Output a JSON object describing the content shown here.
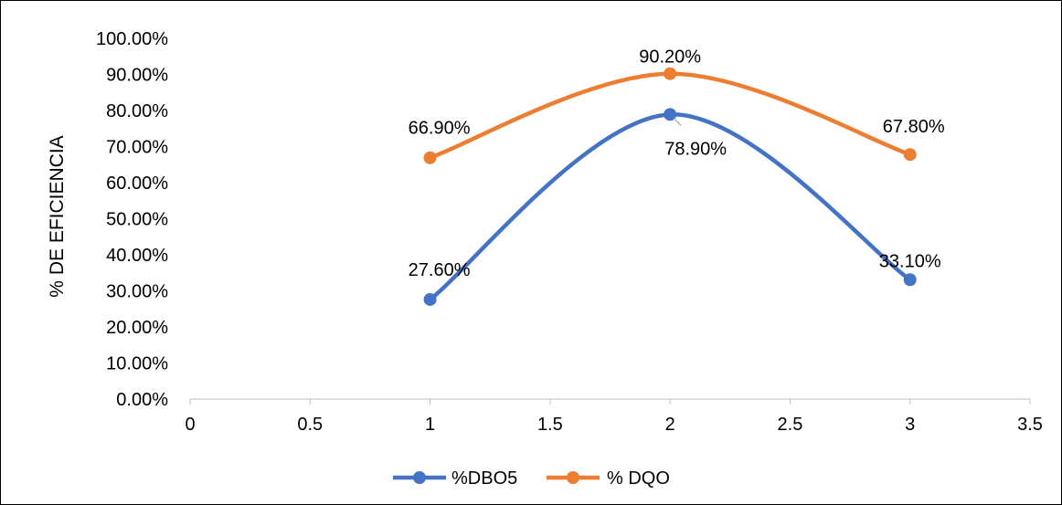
{
  "chart_data": {
    "type": "line",
    "title": "",
    "xlabel": "",
    "ylabel": "% DE EFICIENCIA",
    "xlim": [
      0,
      3.5
    ],
    "ylim": [
      0,
      1
    ],
    "x_ticks": [
      0,
      0.5,
      1,
      1.5,
      2,
      2.5,
      3,
      3.5
    ],
    "x_tick_labels": [
      "0",
      "0.5",
      "1",
      "1.5",
      "2",
      "2.5",
      "3",
      "3.5"
    ],
    "y_ticks": [
      0,
      0.1,
      0.2,
      0.3,
      0.4,
      0.5,
      0.6,
      0.7,
      0.8,
      0.9,
      1.0
    ],
    "y_tick_labels": [
      "0.00%",
      "10.00%",
      "20.00%",
      "30.00%",
      "40.00%",
      "50.00%",
      "60.00%",
      "70.00%",
      "80.00%",
      "90.00%",
      "100.00%"
    ],
    "grid": false,
    "smooth": true,
    "legend_position": "bottom",
    "series": [
      {
        "name": "%DBO5",
        "color": "#4472C4",
        "x": [
          1,
          2,
          3
        ],
        "y": [
          0.276,
          0.789,
          0.331
        ],
        "labels": [
          "27.60%",
          "78.90%",
          "33.10%"
        ]
      },
      {
        "name": "% DQO",
        "color": "#ED7D31",
        "x": [
          1,
          2,
          3
        ],
        "y": [
          0.669,
          0.902,
          0.678
        ],
        "labels": [
          "66.90%",
          "90.20%",
          "67.80%"
        ]
      }
    ]
  }
}
